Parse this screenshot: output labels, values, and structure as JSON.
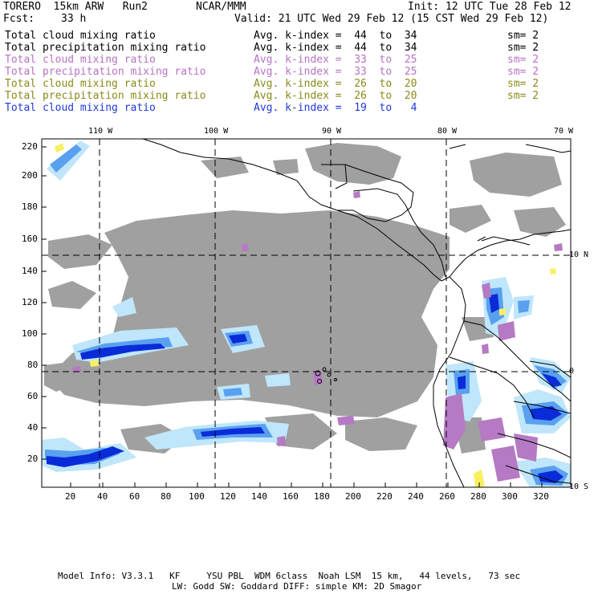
{
  "header": {
    "model": "TORERO  15km ARW   Run2",
    "center": "NCAR/MMM",
    "init": "Init: 12 UTC Tue 28 Feb 12",
    "fcst_label": "Fcst:",
    "fcst_value": "33 h",
    "valid": "Valid: 21 UTC Wed 29 Feb 12 (15 CST Wed 29 Feb 12)"
  },
  "fields": [
    {
      "name": "Total cloud mixing ratio",
      "kindex": "Avg. k-index =  44  to  34",
      "sm": "sm= 2",
      "color": "#000000"
    },
    {
      "name": "Total precipitation mixing ratio",
      "kindex": "Avg. k-index =  44  to  34",
      "sm": "sm= 2",
      "color": "#000000"
    },
    {
      "name": "Total cloud mixing ratio",
      "kindex": "Avg. k-index =  33  to  25",
      "sm": "sm= 2",
      "color": "#b673c2"
    },
    {
      "name": "Total precipitation mixing ratio",
      "kindex": "Avg. k-index =  33  to  25",
      "sm": "sm= 2",
      "color": "#b673c2"
    },
    {
      "name": "Total cloud mixing ratio",
      "kindex": "Avg. k-index =  26  to  20",
      "sm": "sm= 2",
      "color": "#8a8a1a"
    },
    {
      "name": "Total precipitation mixing ratio",
      "kindex": "Avg. k-index =  26  to  20",
      "sm": "sm= 2",
      "color": "#8a8a1a"
    },
    {
      "name": "Total cloud mixing ratio",
      "kindex": "Avg. k-index =  19  to   4",
      "sm": "",
      "color": "#1f3ad6"
    }
  ],
  "map": {
    "lon_labels": [
      "110 W",
      "100 W",
      "90 W",
      "80 W",
      "70 W"
    ],
    "lat_labels": [
      "10 N",
      "0",
      "10 S"
    ],
    "y_ticks": [
      "220",
      "200",
      "180",
      "160",
      "140",
      "120",
      "100",
      "80",
      "60",
      "40",
      "20"
    ],
    "x_ticks": [
      "20",
      "40",
      "60",
      "80",
      "100",
      "120",
      "140",
      "160",
      "180",
      "200",
      "220",
      "240",
      "260",
      "280",
      "300",
      "320"
    ],
    "colors": {
      "cloud_gray": "#a0a0a0",
      "purple": "#b57ac3",
      "light_blue": "#bfe6fa",
      "mid_blue": "#5aa0f0",
      "dark_blue": "#0a2bd8",
      "yellow": "#f7f061"
    }
  },
  "footer": {
    "line1": "Model Info: V3.3.1   KF     YSU PBL  WDM 6class  Noah LSM  15 km,   44 levels,   73 sec",
    "line2": "LW: Godd SW: Goddard DIFF: simple KM: 2D Smagor"
  }
}
